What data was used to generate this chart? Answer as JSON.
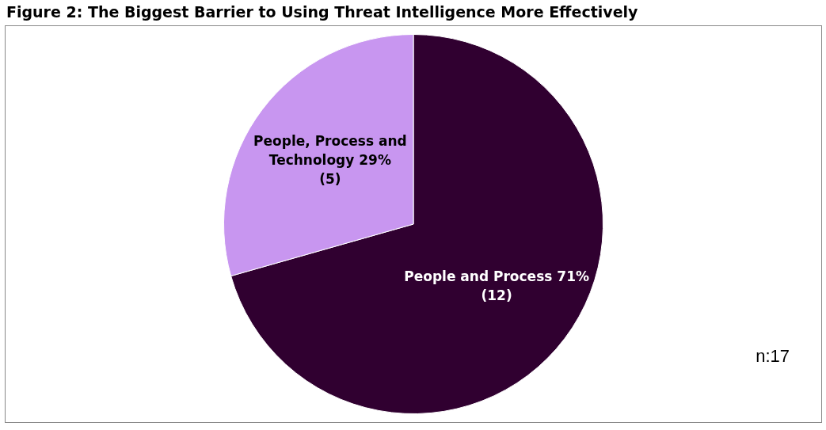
{
  "chart_data": {
    "type": "pie",
    "title": "Figure 2: The Biggest Barrier to Using Threat Intelligence More Effectively",
    "categories": [
      "People and Process",
      "People, Process and Technology"
    ],
    "values": [
      12,
      5
    ],
    "colors": [
      "#300030",
      "#c896f0"
    ],
    "value_labels": [
      "71%\n(12)",
      "29%\n(5)"
    ],
    "annotations": [
      "n:17"
    ],
    "legend": false
  }
}
